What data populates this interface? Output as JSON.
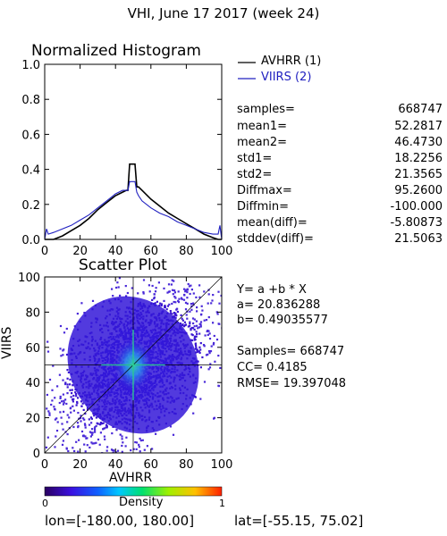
{
  "title": "VHI,  June 17 2017 (week 24)",
  "footer": {
    "lon_text": "lon=[-180.00, 180.00]",
    "lat_text": "lat=[-55.15, 75.02]"
  },
  "colors": {
    "avhrr": "#000000",
    "viirs": "#2020c0",
    "scatter_mid": "#3a20d8",
    "scatter_dense": "#2aa0f0",
    "scatter_core": "#30e0a0"
  },
  "chart_data": [
    {
      "type": "line",
      "title": "Normalized Histogram",
      "xlabel": "",
      "ylabel": "",
      "xlim": [
        0,
        100
      ],
      "ylim": [
        0,
        1.0
      ],
      "x_ticks": [
        "0",
        "20",
        "40",
        "60",
        "80",
        "100"
      ],
      "y_ticks": [
        "0.0",
        "0.2",
        "0.4",
        "0.6",
        "0.8",
        "1.0"
      ],
      "legend_position": "top-right",
      "x": [
        0,
        1,
        2,
        5,
        10,
        15,
        20,
        25,
        30,
        35,
        40,
        44,
        46,
        47,
        48,
        49,
        50,
        51,
        52,
        53,
        55,
        60,
        65,
        70,
        75,
        80,
        85,
        90,
        95,
        98,
        99,
        100
      ],
      "series": [
        {
          "name": "AVHRR (1)",
          "values": [
            0.0,
            0.0,
            0.0,
            0.0,
            0.02,
            0.05,
            0.08,
            0.12,
            0.17,
            0.21,
            0.25,
            0.27,
            0.28,
            0.28,
            0.43,
            0.43,
            0.43,
            0.43,
            0.3,
            0.3,
            0.28,
            0.23,
            0.19,
            0.15,
            0.12,
            0.09,
            0.06,
            0.03,
            0.01,
            0.0,
            0.0,
            0.0
          ]
        },
        {
          "name": "VIIRS (2)",
          "values": [
            0.0,
            0.06,
            0.03,
            0.04,
            0.06,
            0.08,
            0.11,
            0.14,
            0.18,
            0.22,
            0.26,
            0.28,
            0.28,
            0.28,
            0.33,
            0.33,
            0.33,
            0.33,
            0.27,
            0.25,
            0.22,
            0.18,
            0.15,
            0.13,
            0.1,
            0.08,
            0.06,
            0.04,
            0.03,
            0.03,
            0.08,
            0.0
          ]
        }
      ]
    },
    {
      "type": "scatter",
      "title": "Scatter Plot",
      "xlabel": "AVHRR",
      "ylabel": "VIIRS",
      "xlim": [
        0,
        100
      ],
      "ylim": [
        0,
        100
      ],
      "x_ticks": [
        "0",
        "20",
        "40",
        "60",
        "80",
        "100"
      ],
      "y_ticks": [
        "0",
        "20",
        "40",
        "60",
        "80",
        "100"
      ],
      "crosshair": {
        "x": 50,
        "y": 50
      },
      "diagonal": {
        "from": [
          0,
          0
        ],
        "to": [
          100,
          100
        ]
      },
      "density_center": [
        50,
        50
      ],
      "colorbar": {
        "label": "Density",
        "min": "0",
        "max": "1"
      }
    }
  ],
  "stats": [
    {
      "label": "samples=",
      "value": "668747"
    },
    {
      "label": "mean1=",
      "value": "52.2817"
    },
    {
      "label": "mean2=",
      "value": "46.4730"
    },
    {
      "label": "std1=",
      "value": "18.2256"
    },
    {
      "label": "std2=",
      "value": "21.3565"
    },
    {
      "label": "Diffmax=",
      "value": "95.2600"
    },
    {
      "label": "Diffmin=",
      "value": "-100.000"
    },
    {
      "label": "mean(diff)=",
      "value": "-5.80873"
    },
    {
      "label": "stddev(diff)=",
      "value": "21.5063"
    }
  ],
  "regression": {
    "equation": "Y= a +b * X",
    "a_text": "a= 20.836288",
    "b_text": "b= 0.49035577",
    "samples_text": "Samples= 668747",
    "cc_text": "CC=  0.4185",
    "rmse_text": "RMSE= 19.397048"
  }
}
